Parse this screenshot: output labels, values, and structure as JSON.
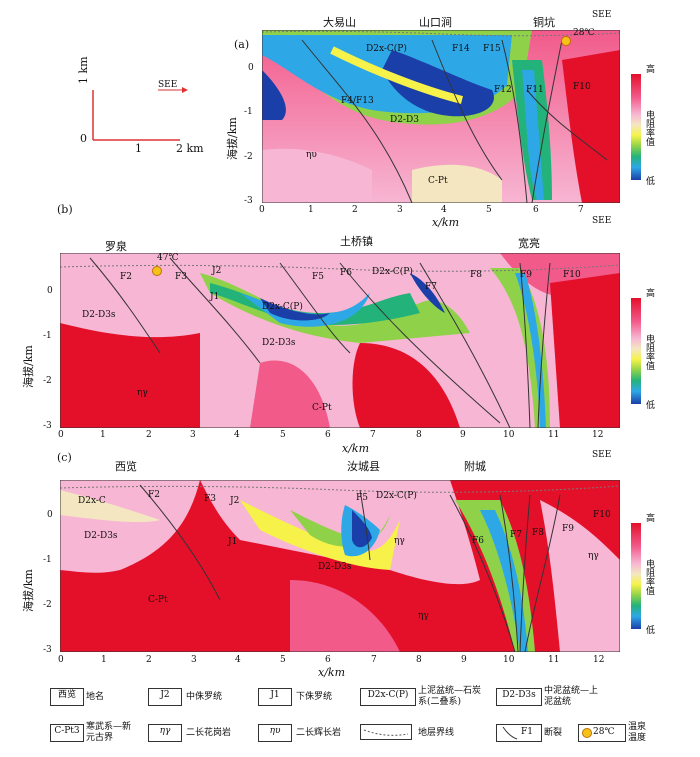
{
  "scale_bar": {
    "vertical_label": "1 km",
    "zero": "0",
    "one": "1",
    "two": "2 km",
    "direction": "SEE"
  },
  "colorbar": {
    "high": "高",
    "label": "电阻率值",
    "low": "低"
  },
  "panels": [
    {
      "id": "(a)",
      "ylabel": "海拔/km",
      "xlabel": "x/km",
      "direction": "SEE",
      "places": [
        "大易山",
        "山口涧",
        "铜坑"
      ],
      "temperature": "28℃",
      "x_ticks": [
        "0",
        "1",
        "2",
        "3",
        "4",
        "5",
        "6",
        "7"
      ],
      "y_ticks": [
        "0",
        "-1",
        "-2",
        "-3"
      ],
      "units": [
        "D2x-C(P)",
        "D2-D3",
        "ηυ",
        "C-Pt"
      ],
      "faults": [
        "F14",
        "F15",
        "F4/F13",
        "F12",
        "F11",
        "F10"
      ]
    },
    {
      "id": "(b)",
      "ylabel": "海拔/km",
      "xlabel": "x/km",
      "direction": "SEE",
      "places": [
        "罗泉",
        "土桥镇",
        "宽亮"
      ],
      "temperature": "47℃",
      "x_ticks": [
        "0",
        "1",
        "2",
        "3",
        "4",
        "5",
        "6",
        "7",
        "8",
        "9",
        "10",
        "11",
        "12"
      ],
      "y_ticks": [
        "0",
        "-1",
        "-2",
        "-3"
      ],
      "units": [
        "J2",
        "J1",
        "D2x-C(P)",
        "D2x-C(P)",
        "D2-D3s",
        "D2-D3s",
        "ηγ",
        "C-Pt"
      ],
      "faults": [
        "F2",
        "F3",
        "F5",
        "F6",
        "F7",
        "F8",
        "F9",
        "F10"
      ]
    },
    {
      "id": "(c)",
      "ylabel": "海拔/km",
      "xlabel": "x/km",
      "direction": "SEE",
      "places": [
        "西览",
        "汝城县",
        "附城"
      ],
      "x_ticks": [
        "0",
        "1",
        "2",
        "3",
        "4",
        "5",
        "6",
        "7",
        "8",
        "9",
        "10",
        "11",
        "12"
      ],
      "y_ticks": [
        "0",
        "-1",
        "-2",
        "-3"
      ],
      "units": [
        "D2x-C",
        "D2-D3s",
        "J2",
        "J1",
        "D2x-C(P)",
        "D2-D3s",
        "ηγ",
        "ηγ",
        "ηγ",
        "C-Pt"
      ],
      "faults": [
        "F2",
        "F3",
        "F5",
        "F6",
        "F7",
        "F8",
        "F9",
        "F10"
      ]
    }
  ],
  "legend": [
    {
      "symbol": "西览",
      "text": "地名"
    },
    {
      "symbol": "J2",
      "text": "中侏罗统"
    },
    {
      "symbol": "J1",
      "text": "下侏罗统"
    },
    {
      "symbol": "D2x-C(P)",
      "text": "上泥盆统—石炭系(二叠系)"
    },
    {
      "symbol": "D2-D3s",
      "text": "中泥盆统—上泥盆统"
    },
    {
      "symbol": "C-Pt3",
      "text": "寒武系—新元古界"
    },
    {
      "symbol": "ηγ",
      "text": "二长花岗岩"
    },
    {
      "symbol": "ηυ",
      "text": "二长辉长岩"
    },
    {
      "symbol": "",
      "text": "地层界线"
    },
    {
      "symbol": "F1",
      "text": "断裂"
    },
    {
      "symbol": "28℃",
      "text": "温泉温度"
    }
  ]
}
